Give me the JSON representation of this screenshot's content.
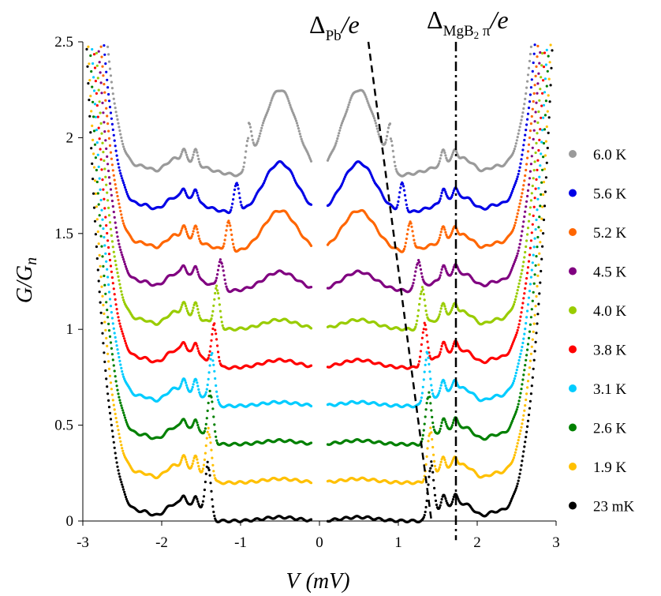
{
  "chart_data": {
    "type": "scatter",
    "xlabel_main": "V",
    "xlabel_unit": "(mV)",
    "ylabel_main": "G/G",
    "ylabel_sub": "n",
    "xlim": [
      -3,
      3
    ],
    "ylim": [
      0,
      2.5
    ],
    "xticks": [
      -3,
      -2,
      -1,
      0,
      1,
      2,
      3
    ],
    "xtick_labels": [
      "-3",
      "-2",
      "-1",
      "0",
      "1",
      "2",
      "3"
    ],
    "yticks": [
      0,
      0.5,
      1,
      1.5,
      2,
      2.5
    ],
    "ytick_labels": [
      "0",
      "0.5",
      "1",
      "1.5",
      "2",
      "2.5"
    ],
    "grid": false,
    "legend_position": "right",
    "series": [
      {
        "name": "6.0 K",
        "color": "#9a9a9a",
        "offset": 1.8,
        "peak": 0.2,
        "gap": 0.9,
        "bump": 0.45,
        "kinks": [
          1.55,
          1.5
        ]
      },
      {
        "name": "5.6 K",
        "color": "#0000e6",
        "offset": 1.6,
        "peak": 0.15,
        "gap": 1.05,
        "bump": 0.27,
        "kinks": [
          1.55,
          1.62
        ]
      },
      {
        "name": "5.2 K",
        "color": "#ff6600",
        "offset": 1.4,
        "peak": 0.15,
        "gap": 1.15,
        "bump": 0.22,
        "kinks": [
          1.55,
          1.62
        ]
      },
      {
        "name": "4.5 K",
        "color": "#800080",
        "offset": 1.2,
        "peak": 0.15,
        "gap": 1.25,
        "bump": 0.1,
        "kinks": [
          1.55,
          1.62
        ]
      },
      {
        "name": "4.0 K",
        "color": "#99cc00",
        "offset": 1.0,
        "peak": 0.2,
        "gap": 1.3,
        "bump": 0.05,
        "kinks": [
          1.55,
          1.62
        ]
      },
      {
        "name": "3.8 K",
        "color": "#ff0000",
        "offset": 0.8,
        "peak": 0.2,
        "gap": 1.33,
        "bump": 0.04,
        "kinks": [
          1.55,
          1.62
        ]
      },
      {
        "name": "3.1 K",
        "color": "#00ccff",
        "offset": 0.6,
        "peak": 0.25,
        "gap": 1.36,
        "bump": 0.02,
        "kinks": [
          1.55,
          1.62
        ]
      },
      {
        "name": "2.6 K",
        "color": "#008000",
        "offset": 0.4,
        "peak": 0.25,
        "gap": 1.38,
        "bump": 0.02,
        "kinks": [
          1.55,
          1.62
        ]
      },
      {
        "name": "1.9 K",
        "color": "#ffc000",
        "offset": 0.2,
        "peak": 0.25,
        "gap": 1.4,
        "bump": 0.02,
        "kinks": [
          1.55,
          1.62
        ]
      },
      {
        "name": "23 mK",
        "color": "#000000",
        "offset": 0.0,
        "peak": 0.28,
        "gap": 1.41,
        "bump": 0.02,
        "kinks": [
          1.55,
          1.62
        ]
      }
    ],
    "reference_lines": [
      {
        "style": "dashed",
        "points": [
          [
            0.62,
            2.5
          ],
          [
            1.42,
            0.0
          ]
        ]
      },
      {
        "style": "dash-dot",
        "points": [
          [
            1.73,
            2.5
          ],
          [
            1.73,
            -0.1
          ]
        ]
      }
    ]
  },
  "annotations": {
    "pb_delta": "Δ",
    "pb_sub": "Pb",
    "pb_tail": "/e",
    "mgb_delta": "Δ",
    "mgb_sub": "MgB",
    "mgb_sub2": "2",
    "mgb_pi": " π",
    "mgb_tail": "/e"
  }
}
